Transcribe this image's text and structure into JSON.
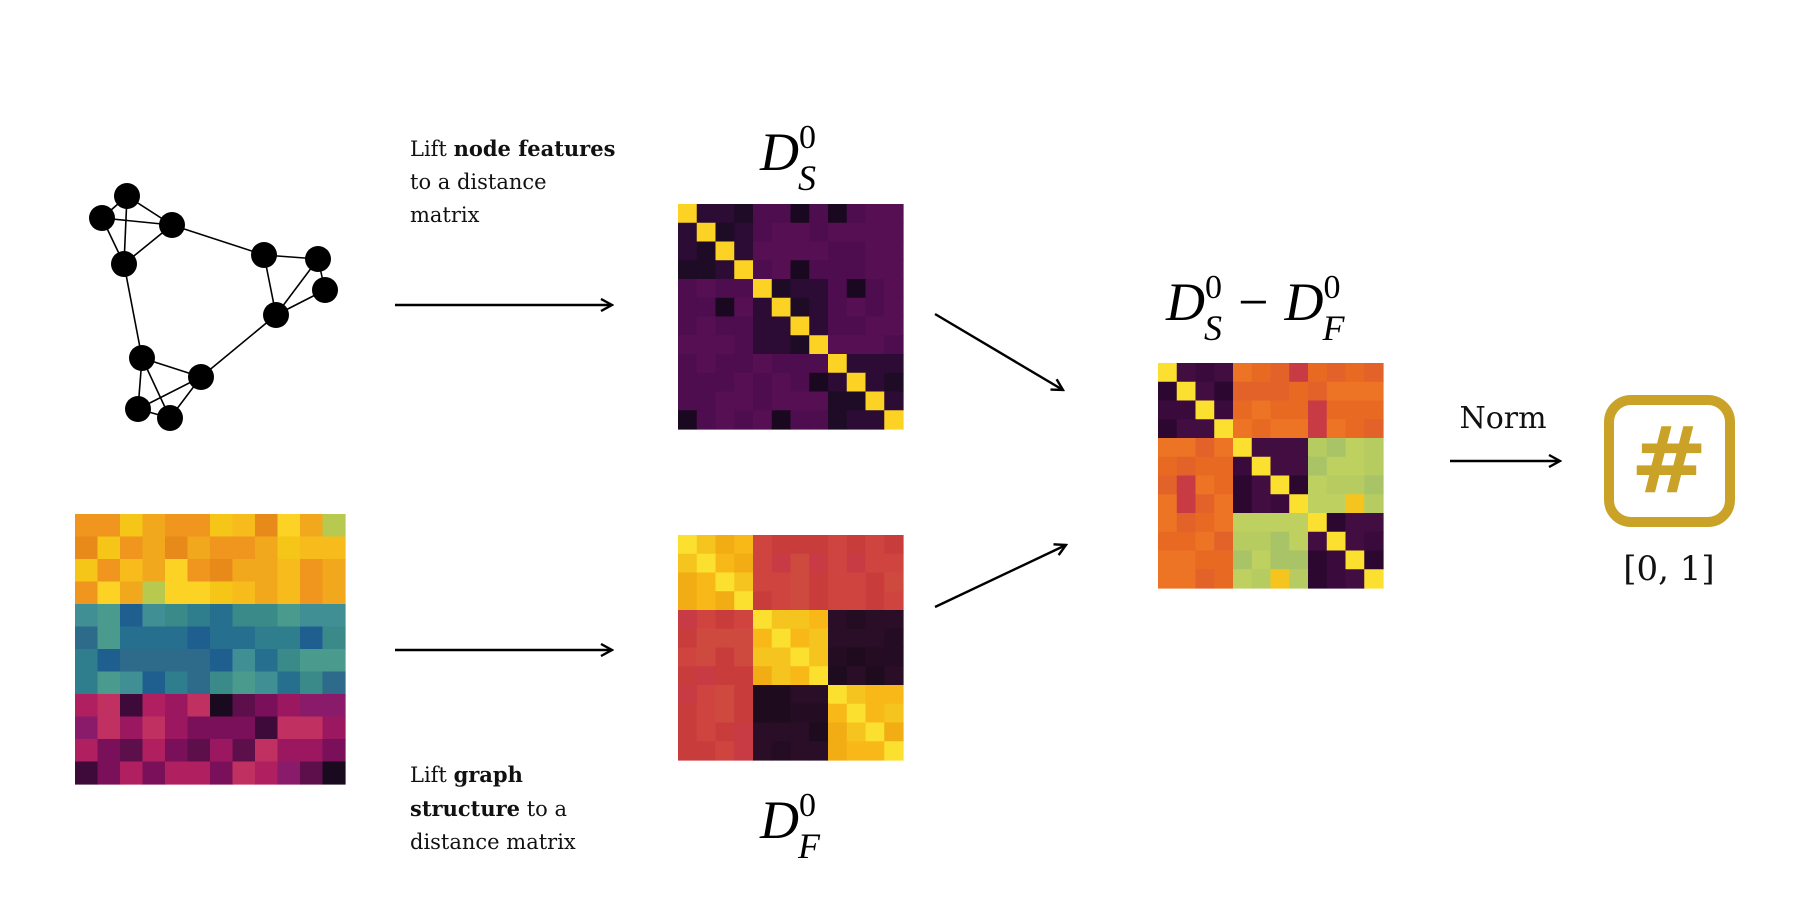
{
  "captions": {
    "node_features": {
      "line1_pre": "Lift ",
      "line1_bold": "node features",
      "line2": "to a distance",
      "line3": "matrix"
    },
    "graph_structure": {
      "line1_pre": "Lift ",
      "line1_bold": "graph",
      "line2_bold": "structure",
      "line2_post": " to a",
      "line3": "distance matrix"
    }
  },
  "labels": {
    "ds_base": "D",
    "ds_sup": "0",
    "ds_sub": "S",
    "df_base": "D",
    "df_sup": "0",
    "df_sub": "F",
    "minus": "−",
    "norm": "Norm",
    "result_icon": "#",
    "range": "[0, 1]"
  },
  "colors": {
    "accent_gold": "#c9a227",
    "line": "#000000",
    "node": "#000000"
  },
  "icons": {
    "result": "hash-icon",
    "arrow": "right-arrow"
  },
  "graph": {
    "nodes": [
      "n1",
      "n2",
      "n3",
      "n4",
      "n5",
      "n6",
      "n7",
      "n8",
      "n9",
      "n10",
      "n11",
      "n12",
      "n13"
    ],
    "edges": [
      [
        "n1",
        "n2"
      ],
      [
        "n1",
        "n3"
      ],
      [
        "n1",
        "n4"
      ],
      [
        "n2",
        "n3"
      ],
      [
        "n2",
        "n4"
      ],
      [
        "n3",
        "n4"
      ],
      [
        "n3",
        "n5"
      ],
      [
        "n5",
        "n6"
      ],
      [
        "n5",
        "n8"
      ],
      [
        "n6",
        "n7"
      ],
      [
        "n6",
        "n8"
      ],
      [
        "n7",
        "n8"
      ],
      [
        "n8",
        "n10"
      ],
      [
        "n4",
        "n9"
      ],
      [
        "n9",
        "n10"
      ],
      [
        "n9",
        "n11"
      ],
      [
        "n9",
        "n12"
      ],
      [
        "n10",
        "n11"
      ],
      [
        "n10",
        "n12"
      ],
      [
        "n11",
        "n12"
      ]
    ]
  },
  "matrices": {
    "feature_matrix": {
      "rows": 12,
      "cols": 12,
      "colormap": "viridis-plasma",
      "groups": [
        4,
        4,
        4
      ]
    },
    "ds0": {
      "size": 12,
      "colormap": "inferno",
      "blocks": [
        4,
        4,
        4
      ]
    },
    "df0": {
      "size": 12,
      "colormap": "inferno",
      "blocks": [
        4,
        4,
        4
      ]
    },
    "diff": {
      "size": 12,
      "colormap": "inferno",
      "blocks": [
        4,
        4,
        4
      ]
    }
  }
}
